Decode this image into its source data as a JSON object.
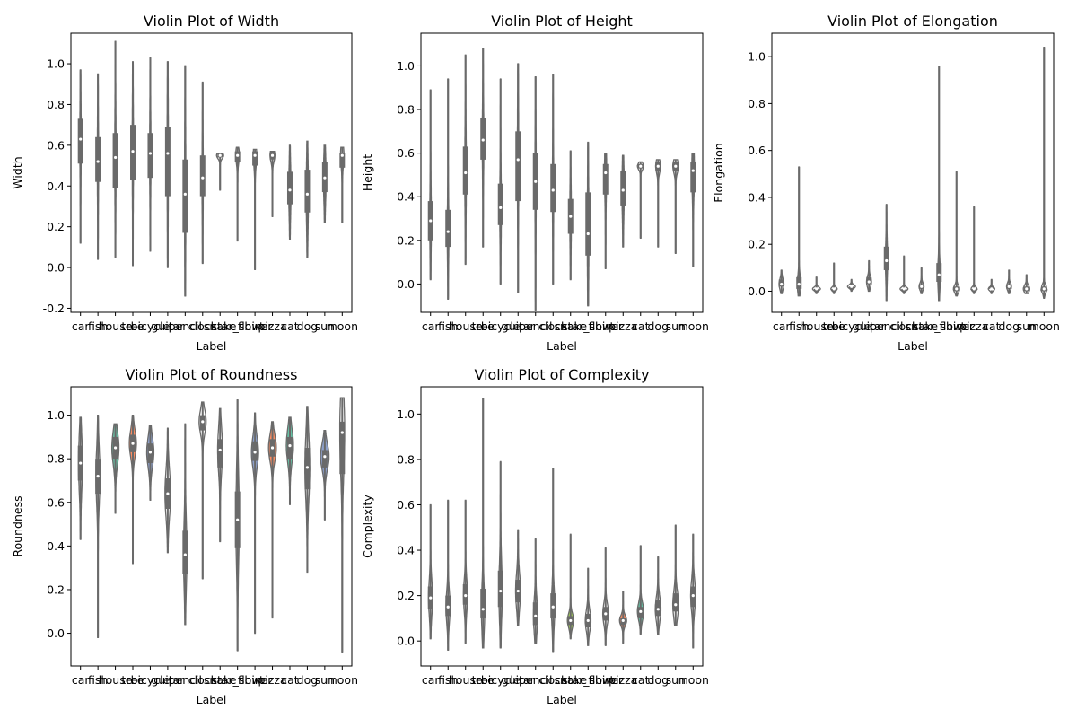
{
  "chart_data": [
    {
      "type": "violin",
      "title": "Violin Plot of Width",
      "xlabel": "Label",
      "ylabel": "Width",
      "ylim": [
        -0.22,
        1.15
      ],
      "yticks": [
        -0.2,
        0.0,
        0.2,
        0.4,
        0.6,
        0.8,
        1.0
      ],
      "categories": [
        "car",
        "fish",
        "house",
        "tree",
        "bicycle",
        "guitar",
        "pencil",
        "clock",
        "snake",
        "star_shirt",
        "flower",
        "pizza",
        "cat",
        "dog",
        "sun",
        "moon"
      ],
      "series": [
        {
          "category": "car",
          "min": 0.12,
          "q1": 0.51,
          "median": 0.63,
          "q3": 0.73,
          "max": 0.97,
          "spread": 0.06
        },
        {
          "category": "fish",
          "min": 0.04,
          "q1": 0.42,
          "median": 0.52,
          "q3": 0.64,
          "max": 0.95,
          "spread": 0.06
        },
        {
          "category": "house",
          "min": 0.05,
          "q1": 0.39,
          "median": 0.54,
          "q3": 0.66,
          "max": 1.11,
          "spread": 0.06
        },
        {
          "category": "tree",
          "min": 0.01,
          "q1": 0.43,
          "median": 0.57,
          "q3": 0.7,
          "max": 1.01,
          "spread": 0.06
        },
        {
          "category": "bicycle",
          "min": 0.08,
          "q1": 0.44,
          "median": 0.56,
          "q3": 0.66,
          "max": 1.03,
          "spread": 0.06
        },
        {
          "category": "guitar",
          "min": 0.0,
          "q1": 0.35,
          "median": 0.56,
          "q3": 0.69,
          "max": 1.01,
          "spread": 0.06
        },
        {
          "category": "pencil",
          "min": -0.14,
          "q1": 0.17,
          "median": 0.36,
          "q3": 0.53,
          "max": 0.99,
          "spread": 0.06
        },
        {
          "category": "clock",
          "min": 0.02,
          "q1": 0.35,
          "median": 0.44,
          "q3": 0.55,
          "max": 0.91,
          "spread": 0.06
        },
        {
          "category": "snake",
          "min": 0.38,
          "q1": 0.54,
          "median": 0.55,
          "q3": 0.56,
          "max": 0.56,
          "spread": 0.45
        },
        {
          "category": "star_shirt",
          "min": 0.13,
          "q1": 0.52,
          "median": 0.55,
          "q3": 0.57,
          "max": 0.59,
          "spread": 0.22
        },
        {
          "category": "flower",
          "min": -0.01,
          "q1": 0.5,
          "median": 0.55,
          "q3": 0.57,
          "max": 0.58,
          "spread": 0.2
        },
        {
          "category": "pizza",
          "min": 0.25,
          "q1": 0.53,
          "median": 0.55,
          "q3": 0.57,
          "max": 0.57,
          "spread": 0.3
        },
        {
          "category": "cat",
          "min": 0.14,
          "q1": 0.31,
          "median": 0.38,
          "q3": 0.47,
          "max": 0.6,
          "spread": 0.12
        },
        {
          "category": "dog",
          "min": 0.05,
          "q1": 0.27,
          "median": 0.36,
          "q3": 0.48,
          "max": 0.62,
          "spread": 0.12
        },
        {
          "category": "sun",
          "min": 0.22,
          "q1": 0.37,
          "median": 0.44,
          "q3": 0.52,
          "max": 0.6,
          "spread": 0.15
        },
        {
          "category": "moon",
          "min": 0.22,
          "q1": 0.49,
          "median": 0.55,
          "q3": 0.56,
          "max": 0.59,
          "spread": 0.2
        }
      ]
    },
    {
      "type": "violin",
      "title": "Violin Plot of Height",
      "xlabel": "Label",
      "ylabel": "Height",
      "ylim": [
        -0.13,
        1.15
      ],
      "yticks": [
        0.0,
        0.2,
        0.4,
        0.6,
        0.8,
        1.0
      ],
      "categories": [
        "car",
        "fish",
        "house",
        "tree",
        "bicycle",
        "guitar",
        "pencil",
        "clock",
        "snake",
        "star_shirt",
        "flower",
        "pizza",
        "cat",
        "dog",
        "sun",
        "moon"
      ],
      "series": [
        {
          "category": "car",
          "min": 0.02,
          "q1": 0.2,
          "median": 0.29,
          "q3": 0.38,
          "max": 0.89,
          "spread": 0.08
        },
        {
          "category": "fish",
          "min": -0.07,
          "q1": 0.17,
          "median": 0.24,
          "q3": 0.34,
          "max": 0.94,
          "spread": 0.08
        },
        {
          "category": "house",
          "min": 0.09,
          "q1": 0.41,
          "median": 0.51,
          "q3": 0.63,
          "max": 1.05,
          "spread": 0.08
        },
        {
          "category": "tree",
          "min": 0.17,
          "q1": 0.57,
          "median": 0.66,
          "q3": 0.76,
          "max": 1.08,
          "spread": 0.08
        },
        {
          "category": "bicycle",
          "min": 0.0,
          "q1": 0.27,
          "median": 0.35,
          "q3": 0.46,
          "max": 0.94,
          "spread": 0.08
        },
        {
          "category": "guitar",
          "min": -0.04,
          "q1": 0.38,
          "median": 0.57,
          "q3": 0.7,
          "max": 1.01,
          "spread": 0.06
        },
        {
          "category": "pencil",
          "min": -0.12,
          "q1": 0.34,
          "median": 0.47,
          "q3": 0.6,
          "max": 0.95,
          "spread": 0.06
        },
        {
          "category": "clock",
          "min": 0.0,
          "q1": 0.33,
          "median": 0.43,
          "q3": 0.55,
          "max": 0.96,
          "spread": 0.06
        },
        {
          "category": "snake",
          "min": 0.02,
          "q1": 0.23,
          "median": 0.31,
          "q3": 0.39,
          "max": 0.61,
          "spread": 0.08
        },
        {
          "category": "star_shirt",
          "min": -0.1,
          "q1": 0.13,
          "median": 0.23,
          "q3": 0.42,
          "max": 0.65,
          "spread": 0.08
        },
        {
          "category": "flower",
          "min": 0.07,
          "q1": 0.41,
          "median": 0.51,
          "q3": 0.55,
          "max": 0.6,
          "spread": 0.12
        },
        {
          "category": "pizza",
          "min": 0.17,
          "q1": 0.36,
          "median": 0.43,
          "q3": 0.52,
          "max": 0.59,
          "spread": 0.12
        },
        {
          "category": "cat",
          "min": 0.21,
          "q1": 0.53,
          "median": 0.54,
          "q3": 0.55,
          "max": 0.56,
          "spread": 0.4
        },
        {
          "category": "dog",
          "min": 0.17,
          "q1": 0.52,
          "median": 0.54,
          "q3": 0.56,
          "max": 0.57,
          "spread": 0.3
        },
        {
          "category": "sun",
          "min": 0.14,
          "q1": 0.52,
          "median": 0.54,
          "q3": 0.56,
          "max": 0.57,
          "spread": 0.35
        },
        {
          "category": "moon",
          "min": 0.08,
          "q1": 0.42,
          "median": 0.52,
          "q3": 0.56,
          "max": 0.6,
          "spread": 0.15
        }
      ]
    },
    {
      "type": "violin",
      "title": "Violin Plot of Elongation",
      "xlabel": "Label",
      "ylabel": "Elongation",
      "ylim": [
        -0.09,
        1.1
      ],
      "yticks": [
        0.0,
        0.2,
        0.4,
        0.6,
        0.8,
        1.0
      ],
      "categories": [
        "car",
        "fish",
        "house",
        "tree",
        "bicycle",
        "guitar",
        "pencil",
        "clock",
        "snake",
        "star_shirt",
        "flower",
        "pizza",
        "cat",
        "dog",
        "sun",
        "moon"
      ],
      "series": [
        {
          "category": "car",
          "min": -0.01,
          "q1": 0.02,
          "median": 0.03,
          "q3": 0.05,
          "max": 0.09,
          "spread": 0.3
        },
        {
          "category": "fish",
          "min": -0.02,
          "q1": 0.01,
          "median": 0.03,
          "q3": 0.06,
          "max": 0.53,
          "spread": 0.2
        },
        {
          "category": "house",
          "min": -0.01,
          "q1": 0.0,
          "median": 0.01,
          "q3": 0.01,
          "max": 0.06,
          "spread": 0.5
        },
        {
          "category": "tree",
          "min": -0.01,
          "q1": 0.0,
          "median": 0.01,
          "q3": 0.01,
          "max": 0.12,
          "spread": 0.4
        },
        {
          "category": "bicycle",
          "min": 0.0,
          "q1": 0.01,
          "median": 0.02,
          "q3": 0.02,
          "max": 0.05,
          "spread": 0.5
        },
        {
          "category": "guitar",
          "min": 0.0,
          "q1": 0.03,
          "median": 0.04,
          "q3": 0.06,
          "max": 0.13,
          "spread": 0.3
        },
        {
          "category": "pencil",
          "min": -0.04,
          "q1": 0.09,
          "median": 0.13,
          "q3": 0.19,
          "max": 0.37,
          "spread": 0.12
        },
        {
          "category": "clock",
          "min": -0.01,
          "q1": 0.0,
          "median": 0.01,
          "q3": 0.01,
          "max": 0.15,
          "spread": 0.5
        },
        {
          "category": "snake",
          "min": -0.01,
          "q1": 0.01,
          "median": 0.02,
          "q3": 0.03,
          "max": 0.1,
          "spread": 0.3
        },
        {
          "category": "star_shirt",
          "min": -0.04,
          "q1": 0.04,
          "median": 0.07,
          "q3": 0.12,
          "max": 0.96,
          "spread": 0.15
        },
        {
          "category": "flower",
          "min": -0.02,
          "q1": 0.0,
          "median": 0.01,
          "q3": 0.02,
          "max": 0.51,
          "spread": 0.4
        },
        {
          "category": "pizza",
          "min": -0.01,
          "q1": 0.0,
          "median": 0.01,
          "q3": 0.01,
          "max": 0.36,
          "spread": 0.4
        },
        {
          "category": "cat",
          "min": -0.01,
          "q1": 0.01,
          "median": 0.01,
          "q3": 0.02,
          "max": 0.05,
          "spread": 0.4
        },
        {
          "category": "dog",
          "min": -0.01,
          "q1": 0.01,
          "median": 0.02,
          "q3": 0.03,
          "max": 0.09,
          "spread": 0.3
        },
        {
          "category": "sun",
          "min": -0.01,
          "q1": 0.0,
          "median": 0.01,
          "q3": 0.02,
          "max": 0.07,
          "spread": 0.4
        },
        {
          "category": "moon",
          "min": -0.03,
          "q1": 0.0,
          "median": 0.01,
          "q3": 0.02,
          "max": 1.04,
          "spread": 0.4
        }
      ]
    },
    {
      "type": "violin",
      "title": "Violin Plot of Roundness",
      "xlabel": "Label",
      "ylabel": "Roundness",
      "ylim": [
        -0.15,
        1.13
      ],
      "yticks": [
        0.0,
        0.2,
        0.4,
        0.6,
        0.8,
        1.0
      ],
      "categories": [
        "car",
        "fish",
        "house",
        "tree",
        "bicycle",
        "guitar",
        "pencil",
        "clock",
        "snake",
        "star_shirt",
        "flower",
        "pizza",
        "cat",
        "dog",
        "sun",
        "moon"
      ],
      "series": [
        {
          "category": "car",
          "min": 0.43,
          "q1": 0.7,
          "median": 0.78,
          "q3": 0.86,
          "max": 0.99,
          "spread": 0.25
        },
        {
          "category": "fish",
          "min": -0.02,
          "q1": 0.64,
          "median": 0.72,
          "q3": 0.8,
          "max": 1.0,
          "spread": 0.25
        },
        {
          "category": "house",
          "min": 0.55,
          "q1": 0.8,
          "median": 0.85,
          "q3": 0.9,
          "max": 0.96,
          "spread": 0.45,
          "color": "#66c2a5"
        },
        {
          "category": "tree",
          "min": 0.32,
          "q1": 0.83,
          "median": 0.87,
          "q3": 0.91,
          "max": 1.0,
          "spread": 0.45,
          "color": "#fc8d62"
        },
        {
          "category": "bicycle",
          "min": 0.61,
          "q1": 0.78,
          "median": 0.83,
          "q3": 0.87,
          "max": 0.95,
          "spread": 0.45,
          "color": "#8da0cb"
        },
        {
          "category": "guitar",
          "min": 0.37,
          "q1": 0.57,
          "median": 0.64,
          "q3": 0.71,
          "max": 0.94,
          "spread": 0.35
        },
        {
          "category": "pencil",
          "min": 0.04,
          "q1": 0.27,
          "median": 0.36,
          "q3": 0.47,
          "max": 0.96,
          "spread": 0.2
        },
        {
          "category": "clock",
          "min": 0.25,
          "q1": 0.93,
          "median": 0.97,
          "q3": 1.0,
          "max": 1.06,
          "spread": 0.45
        },
        {
          "category": "snake",
          "min": 0.42,
          "q1": 0.76,
          "median": 0.84,
          "q3": 0.89,
          "max": 1.03,
          "spread": 0.3
        },
        {
          "category": "star_shirt",
          "min": -0.08,
          "q1": 0.39,
          "median": 0.52,
          "q3": 0.65,
          "max": 1.07,
          "spread": 0.2
        },
        {
          "category": "flower",
          "min": 0.0,
          "q1": 0.79,
          "median": 0.83,
          "q3": 0.88,
          "max": 1.01,
          "spread": 0.45,
          "color": "#8da0cb"
        },
        {
          "category": "pizza",
          "min": 0.07,
          "q1": 0.81,
          "median": 0.85,
          "q3": 0.89,
          "max": 0.97,
          "spread": 0.5,
          "color": "#fc8d62"
        },
        {
          "category": "cat",
          "min": 0.59,
          "q1": 0.8,
          "median": 0.86,
          "q3": 0.9,
          "max": 0.99,
          "spread": 0.45,
          "color": "#66c2a5"
        },
        {
          "category": "dog",
          "min": 0.28,
          "q1": 0.66,
          "median": 0.76,
          "q3": 0.85,
          "max": 1.04,
          "spread": 0.3
        },
        {
          "category": "sun",
          "min": 0.52,
          "q1": 0.76,
          "median": 0.81,
          "q3": 0.84,
          "max": 0.93,
          "spread": 0.55,
          "color": "#8da0cb"
        },
        {
          "category": "moon",
          "min": -0.09,
          "q1": 0.73,
          "median": 0.92,
          "q3": 0.97,
          "max": 1.08,
          "spread": 0.3
        }
      ]
    },
    {
      "type": "violin",
      "title": "Violin Plot of Complexity",
      "xlabel": "Label",
      "ylabel": "Complexity",
      "ylim": [
        -0.11,
        1.12
      ],
      "yticks": [
        0.0,
        0.2,
        0.4,
        0.6,
        0.8,
        1.0
      ],
      "categories": [
        "car",
        "fish",
        "house",
        "tree",
        "bicycle",
        "guitar",
        "pencil",
        "clock",
        "snake",
        "star_shirt",
        "flower",
        "pizza",
        "cat",
        "dog",
        "sun",
        "moon"
      ],
      "series": [
        {
          "category": "car",
          "min": 0.01,
          "q1": 0.14,
          "median": 0.19,
          "q3": 0.24,
          "max": 0.6,
          "spread": 0.25
        },
        {
          "category": "fish",
          "min": -0.04,
          "q1": 0.11,
          "median": 0.15,
          "q3": 0.2,
          "max": 0.62,
          "spread": 0.25
        },
        {
          "category": "house",
          "min": -0.01,
          "q1": 0.16,
          "median": 0.2,
          "q3": 0.25,
          "max": 0.62,
          "spread": 0.25
        },
        {
          "category": "tree",
          "min": -0.03,
          "q1": 0.1,
          "median": 0.14,
          "q3": 0.23,
          "max": 1.07,
          "spread": 0.2
        },
        {
          "category": "bicycle",
          "min": -0.03,
          "q1": 0.15,
          "median": 0.22,
          "q3": 0.31,
          "max": 0.79,
          "spread": 0.2
        },
        {
          "category": "guitar",
          "min": 0.07,
          "q1": 0.17,
          "median": 0.22,
          "q3": 0.27,
          "max": 0.49,
          "spread": 0.3
        },
        {
          "category": "pencil",
          "min": -0.01,
          "q1": 0.07,
          "median": 0.11,
          "q3": 0.17,
          "max": 0.45,
          "spread": 0.25
        },
        {
          "category": "clock",
          "min": -0.05,
          "q1": 0.1,
          "median": 0.15,
          "q3": 0.21,
          "max": 0.76,
          "spread": 0.2
        },
        {
          "category": "snake",
          "min": 0.01,
          "q1": 0.07,
          "median": 0.09,
          "q3": 0.11,
          "max": 0.47,
          "spread": 0.4,
          "color": "#a6d854"
        },
        {
          "category": "star_shirt",
          "min": -0.02,
          "q1": 0.06,
          "median": 0.09,
          "q3": 0.12,
          "max": 0.32,
          "spread": 0.35
        },
        {
          "category": "flower",
          "min": -0.02,
          "q1": 0.09,
          "median": 0.12,
          "q3": 0.15,
          "max": 0.41,
          "spread": 0.35
        },
        {
          "category": "pizza",
          "min": -0.01,
          "q1": 0.07,
          "median": 0.09,
          "q3": 0.1,
          "max": 0.22,
          "spread": 0.45,
          "color": "#fc8d62"
        },
        {
          "category": "cat",
          "min": 0.03,
          "q1": 0.1,
          "median": 0.13,
          "q3": 0.15,
          "max": 0.42,
          "spread": 0.4,
          "color": "#66c2a5"
        },
        {
          "category": "dog",
          "min": 0.03,
          "q1": 0.11,
          "median": 0.14,
          "q3": 0.18,
          "max": 0.37,
          "spread": 0.35
        },
        {
          "category": "sun",
          "min": 0.07,
          "q1": 0.13,
          "median": 0.16,
          "q3": 0.21,
          "max": 0.51,
          "spread": 0.35
        },
        {
          "category": "moon",
          "min": -0.03,
          "q1": 0.15,
          "median": 0.2,
          "q3": 0.24,
          "max": 0.47,
          "spread": 0.3
        }
      ]
    }
  ]
}
